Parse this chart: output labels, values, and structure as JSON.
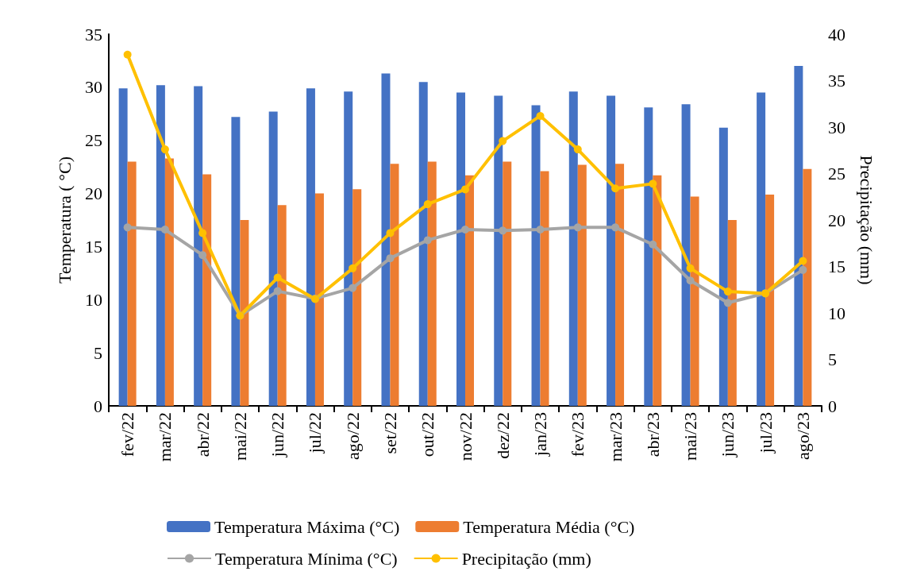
{
  "chart_data": {
    "type": "bar",
    "ylabel": "Temperatura ( °C)",
    "y2label": "Precipitação (mm)",
    "categories": [
      "fev/22",
      "mar/22",
      "abr/22",
      "mai/22",
      "jun/22",
      "jul/22",
      "ago/22",
      "set/22",
      "out/22",
      "nov/22",
      "dez/22",
      "jan/23",
      "fev/23",
      "mar/23",
      "abr/23",
      "mai/23",
      "jun/23",
      "jul/23",
      "ago/23"
    ],
    "series": [
      {
        "name": "Temperatura Máxima (°C)",
        "color": "#4472c4",
        "values": [
          29.9,
          30.2,
          30.1,
          27.2,
          27.7,
          29.9,
          29.6,
          31.3,
          30.5,
          29.5,
          29.2,
          28.3,
          29.6,
          29.2,
          28.1,
          28.4,
          26.2,
          29.5,
          32.0
        ]
      },
      {
        "name": "Temperatura Média (°C)",
        "color": "#ed7d31",
        "values": [
          23.0,
          23.3,
          21.8,
          17.5,
          18.9,
          20.0,
          20.4,
          22.8,
          23.0,
          21.7,
          23.0,
          22.1,
          22.7,
          22.8,
          21.7,
          19.7,
          17.5,
          19.9,
          22.3
        ]
      },
      {
        "name": "Temperatura Mínima (°C)",
        "type": "line",
        "color": "#a5a5a5",
        "values": [
          16.8,
          16.6,
          14.2,
          8.5,
          10.8,
          10.1,
          11.1,
          13.9,
          15.6,
          16.6,
          16.5,
          16.6,
          16.8,
          16.8,
          15.2,
          11.8,
          9.7,
          10.6,
          12.8
        ]
      },
      {
        "name": "Precipitação (mm)",
        "type": "line",
        "axis": "y2",
        "color": "#ffc000",
        "values": [
          37.8,
          27.6,
          18.6,
          9.7,
          13.8,
          11.5,
          14.8,
          18.6,
          21.7,
          23.3,
          28.5,
          31.2,
          27.6,
          23.4,
          23.9,
          14.8,
          12.3,
          12.1,
          15.6
        ]
      }
    ],
    "ylim": [
      0,
      35
    ],
    "yticks": [
      0,
      5,
      10,
      15,
      20,
      25,
      30,
      35
    ],
    "y2lim": [
      0,
      40
    ],
    "y2ticks": [
      0,
      5,
      10,
      15,
      20,
      25,
      30,
      35,
      40
    ],
    "grid": false,
    "legend": "bottom",
    "marker": "circle",
    "line_style": "solid"
  }
}
